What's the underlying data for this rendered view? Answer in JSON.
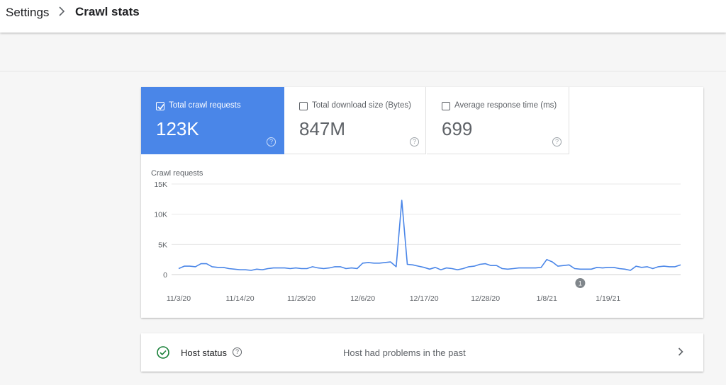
{
  "breadcrumb": {
    "root": "Settings",
    "separator_icon": "chevron-right-icon",
    "current": "Crawl stats"
  },
  "metrics": [
    {
      "label": "Total crawl requests",
      "value": "123K",
      "checked": true,
      "color": "#4a86e8"
    },
    {
      "label": "Total download size (Bytes)",
      "value": "847M",
      "checked": false
    },
    {
      "label": "Average response time (ms)",
      "value": "699",
      "checked": false
    }
  ],
  "chart_data": {
    "type": "line",
    "title": "Crawl requests",
    "ylim": [
      0,
      15000
    ],
    "y_ticks": [
      {
        "value": 0,
        "label": "0"
      },
      {
        "value": 5000,
        "label": "5K"
      },
      {
        "value": 10000,
        "label": "10K"
      },
      {
        "value": 15000,
        "label": "15K"
      }
    ],
    "x_tick_labels": [
      "11/3/20",
      "11/14/20",
      "11/25/20",
      "12/6/20",
      "12/17/20",
      "12/28/20",
      "1/8/21",
      "1/19/21"
    ],
    "grid": true,
    "annotation": {
      "label": "1",
      "day_index": 72
    },
    "series": [
      {
        "color": "#4a86e8",
        "values": [
          1000,
          1400,
          1400,
          1300,
          1800,
          1800,
          1300,
          1200,
          1200,
          1000,
          900,
          800,
          800,
          700,
          900,
          800,
          1000,
          1100,
          1100,
          1100,
          1000,
          1100,
          1000,
          1000,
          1300,
          1100,
          1000,
          1100,
          1300,
          1300,
          1000,
          1100,
          1000,
          1900,
          2000,
          1900,
          1900,
          2000,
          2100,
          1300,
          12300,
          1700,
          1600,
          1400,
          1200,
          900,
          1200,
          800,
          1100,
          1000,
          800,
          1000,
          1300,
          1400,
          1700,
          1800,
          1500,
          1500,
          1000,
          900,
          1000,
          1100,
          1100,
          1100,
          1100,
          1200,
          2500,
          2100,
          1400,
          1500,
          1600,
          1000,
          900,
          900,
          900,
          1200,
          1100,
          1200,
          1200,
          1000,
          900,
          700,
          1400,
          1200,
          1300,
          1000,
          1300,
          1400,
          1300,
          1300,
          1600
        ]
      }
    ]
  },
  "host_status": {
    "icon": "check-circle-icon",
    "label": "Host status",
    "help": "?",
    "message": "Host had problems in the past",
    "chevron": "chevron-right-icon",
    "color": "#188038"
  }
}
